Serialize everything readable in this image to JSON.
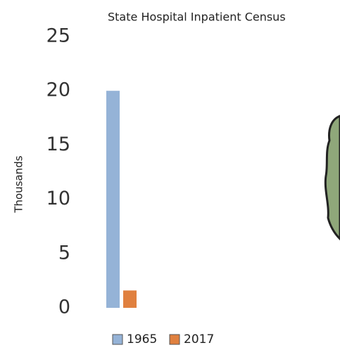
{
  "chart_data": {
    "type": "bar",
    "title": "State Hospital Inpatient Census",
    "y_label": "Thousands",
    "categories": [
      null
    ],
    "series": [
      {
        "name": "1965",
        "color": "#95b3d7",
        "values": [
          20
        ]
      },
      {
        "name": "2017",
        "color": "#e0803f",
        "values": [
          1.6
        ]
      }
    ],
    "ylim": [
      0,
      25
    ],
    "yticks": [
      0,
      5,
      10,
      15,
      20,
      25
    ],
    "grid": false,
    "legend": "bottom"
  }
}
